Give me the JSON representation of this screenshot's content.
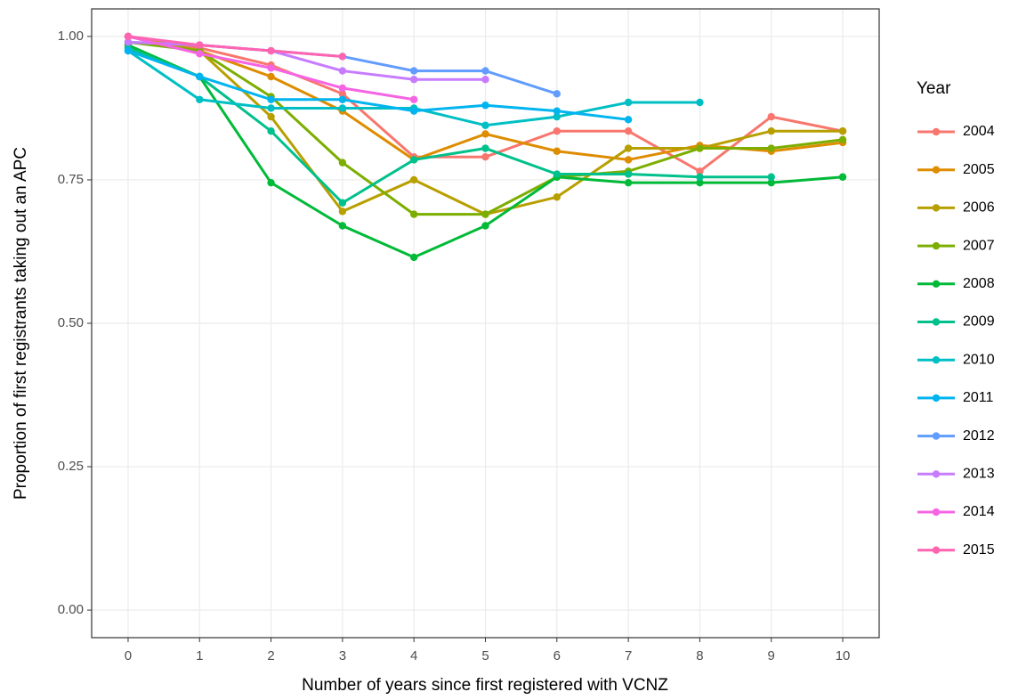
{
  "chart_data": {
    "type": "line",
    "x_label": "Number of years since first registered with VCNZ",
    "y_label": "Proportion of first registrants taking out an APC",
    "legend_title": "Year",
    "legend": "right",
    "grid": true,
    "x": [
      0,
      1,
      2,
      3,
      4,
      5,
      6,
      7,
      8,
      9,
      10
    ],
    "xlim": [
      -0.51,
      10.51
    ],
    "xticks": [
      0,
      1,
      2,
      3,
      4,
      5,
      6,
      7,
      8,
      9,
      10
    ],
    "ylim": [
      -0.048,
      1.048
    ],
    "yticks": [
      {
        "value": 0,
        "label": "0.00"
      },
      {
        "value": 0.25,
        "label": "0.25"
      },
      {
        "value": 0.5,
        "label": "0.50"
      },
      {
        "value": 0.75,
        "label": "0.75"
      },
      {
        "value": 1,
        "label": "1.00"
      }
    ],
    "series": [
      {
        "name": "2004",
        "color": "#F8766D",
        "values": [
          1.0,
          0.98,
          0.95,
          0.9,
          0.79,
          0.79,
          0.835,
          0.835,
          0.765,
          0.86,
          0.835
        ]
      },
      {
        "name": "2005",
        "color": "#DE8C00",
        "values": [
          1.0,
          0.975,
          0.93,
          0.87,
          0.785,
          0.83,
          0.8,
          0.785,
          0.81,
          0.8,
          0.815
        ]
      },
      {
        "name": "2006",
        "color": "#B79F00",
        "values": [
          1.0,
          0.975,
          0.86,
          0.695,
          0.75,
          0.69,
          0.72,
          0.805,
          0.805,
          0.835,
          0.835
        ]
      },
      {
        "name": "2007",
        "color": "#7CAE00",
        "values": [
          0.99,
          0.975,
          0.895,
          0.78,
          0.69,
          0.69,
          0.755,
          0.765,
          0.805,
          0.805,
          0.82
        ]
      },
      {
        "name": "2008",
        "color": "#00BA38",
        "values": [
          0.985,
          0.93,
          0.745,
          0.67,
          0.615,
          0.67,
          0.755,
          0.745,
          0.745,
          0.745,
          0.755
        ]
      },
      {
        "name": "2009",
        "color": "#00C08B",
        "values": [
          0.98,
          0.93,
          0.835,
          0.71,
          0.785,
          0.805,
          0.76,
          0.76,
          0.755,
          0.755,
          null
        ]
      },
      {
        "name": "2010",
        "color": "#00BFC4",
        "values": [
          0.975,
          0.89,
          0.875,
          0.875,
          0.875,
          0.845,
          0.86,
          0.885,
          0.885,
          null,
          null
        ]
      },
      {
        "name": "2011",
        "color": "#00B4F0",
        "values": [
          0.975,
          0.93,
          0.89,
          0.89,
          0.87,
          0.88,
          0.87,
          0.855,
          null,
          null,
          null
        ]
      },
      {
        "name": "2012",
        "color": "#619CFF",
        "values": [
          0.99,
          0.985,
          0.975,
          0.965,
          0.94,
          0.94,
          0.9,
          null,
          null,
          null,
          null
        ]
      },
      {
        "name": "2013",
        "color": "#C77CFF",
        "values": [
          0.99,
          0.985,
          0.975,
          0.94,
          0.925,
          0.925,
          null,
          null,
          null,
          null,
          null
        ]
      },
      {
        "name": "2014",
        "color": "#F564E3",
        "values": [
          1.0,
          0.97,
          0.945,
          0.91,
          0.89,
          null,
          null,
          null,
          null,
          null,
          null
        ]
      },
      {
        "name": "2015",
        "color": "#FF64B0",
        "values": [
          1.0,
          0.985,
          0.975,
          0.965,
          null,
          null,
          null,
          null,
          null,
          null,
          null
        ]
      }
    ]
  }
}
